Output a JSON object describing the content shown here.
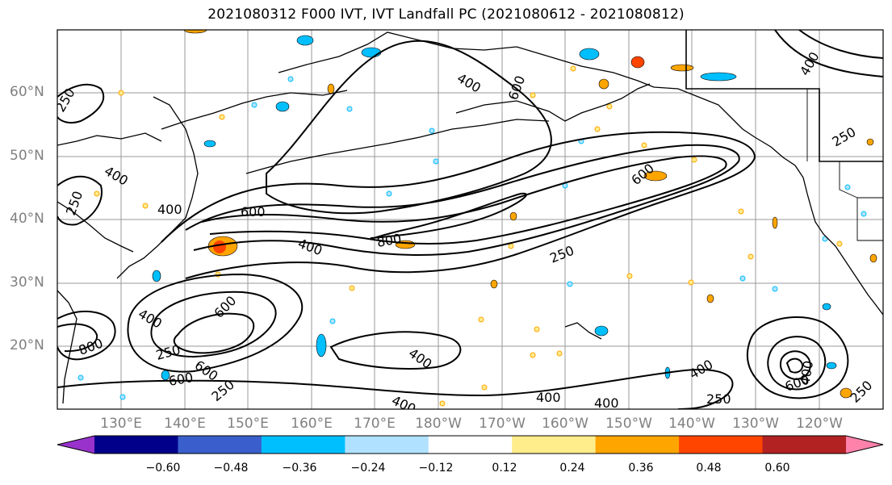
{
  "title": "2021080312 F000 IVT, IVT Landfall PC (2021080612 - 2021080812)",
  "lat_labels": [
    "60°N",
    "50°N",
    "40°N",
    "30°N",
    "20°N"
  ],
  "lon_labels": [
    "130°E",
    "140°E",
    "150°E",
    "160°E",
    "170°E",
    "180°W",
    "170°W",
    "160°W",
    "150°W",
    "140°W",
    "130°W",
    "120°W"
  ],
  "contour_labels": [
    "250",
    "400",
    "600",
    "800"
  ],
  "colorbar": {
    "ticks": [
      "−0.60",
      "−0.48",
      "−0.36",
      "−0.24",
      "−0.12",
      "0.12",
      "0.24",
      "0.36",
      "0.48",
      "0.60"
    ],
    "colors": [
      "#9932cc",
      "#00008b",
      "#3a5fcd",
      "#00bfff",
      "#b0e2ff",
      "#ffffff",
      "#ffec8b",
      "#ffa500",
      "#ff4500",
      "#b22222",
      "#ff82ab"
    ]
  }
}
